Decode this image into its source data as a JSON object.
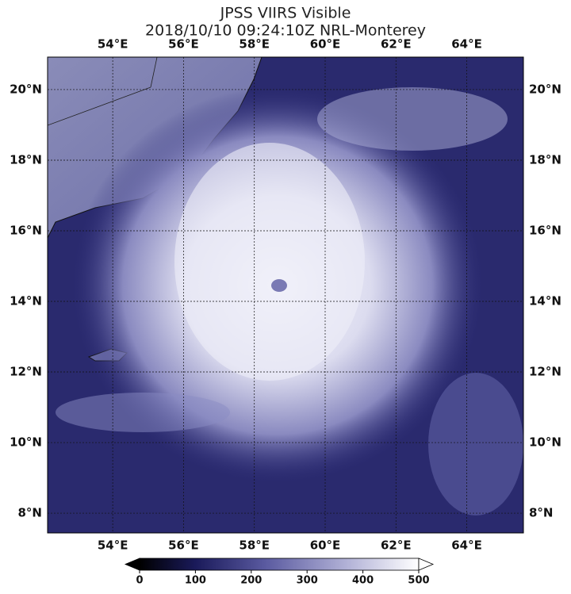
{
  "title": "JPSS VIIRS Visible",
  "subtitle": "2018/10/10 09:24:10Z NRL-Monterey",
  "map": {
    "lonlim": [
      52.16,
      65.6
    ],
    "latlim": [
      7.44,
      20.92
    ],
    "lonticks": [
      {
        "value": 54,
        "label": "54°E"
      },
      {
        "value": 56,
        "label": "56°E"
      },
      {
        "value": 58,
        "label": "58°E"
      },
      {
        "value": 60,
        "label": "60°E"
      },
      {
        "value": 62,
        "label": "62°E"
      },
      {
        "value": 64,
        "label": "64°E"
      }
    ],
    "latticks": [
      {
        "value": 20,
        "label": "20°N"
      },
      {
        "value": 18,
        "label": "18°N"
      },
      {
        "value": 16,
        "label": "16°N"
      },
      {
        "value": 14,
        "label": "14°N"
      },
      {
        "value": 12,
        "label": "12°N"
      },
      {
        "value": 10,
        "label": "10°N"
      },
      {
        "value": 8,
        "label": "8°N"
      }
    ]
  },
  "colorbar": {
    "clim": [
      0,
      500
    ],
    "ticks": [
      0,
      100,
      200,
      300,
      400,
      500
    ]
  }
}
